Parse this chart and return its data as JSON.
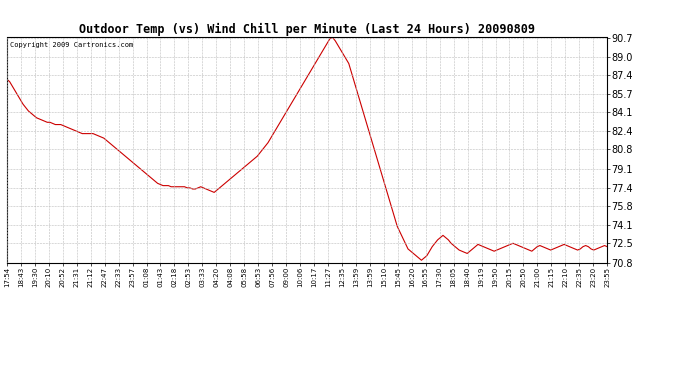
{
  "title": "Outdoor Temp (vs) Wind Chill per Minute (Last 24 Hours) 20090809",
  "copyright_text": "Copyright 2009 Cartronics.com",
  "line_color": "#cc0000",
  "background_color": "#ffffff",
  "grid_color": "#bbbbbb",
  "ylim": [
    70.8,
    90.7
  ],
  "yticks": [
    70.8,
    72.5,
    74.1,
    75.8,
    77.4,
    79.1,
    80.8,
    82.4,
    84.1,
    85.7,
    87.4,
    89.0,
    90.7
  ],
  "xtick_labels": [
    "17:54",
    "18:43",
    "19:30",
    "20:10",
    "20:52",
    "21:31",
    "21:12",
    "22:47",
    "22:33",
    "23:57",
    "01:08",
    "01:43",
    "02:18",
    "02:53",
    "03:33",
    "04:20",
    "04:08",
    "05:58",
    "06:53",
    "07:56",
    "09:00",
    "10:06",
    "10:17",
    "11:27",
    "12:35",
    "13:59",
    "13:59",
    "15:10",
    "15:45",
    "16:20",
    "16:55",
    "17:30",
    "18:05",
    "18:40",
    "19:19",
    "19:50",
    "20:15",
    "20:50",
    "21:00",
    "21:15",
    "22:10",
    "22:35",
    "23:20",
    "23:55"
  ],
  "data_y": [
    87.0,
    86.8,
    86.4,
    86.0,
    85.6,
    85.2,
    84.8,
    84.5,
    84.2,
    84.0,
    83.8,
    83.6,
    83.5,
    83.4,
    83.3,
    83.2,
    83.2,
    83.1,
    83.0,
    83.0,
    83.0,
    82.9,
    82.8,
    82.7,
    82.6,
    82.5,
    82.4,
    82.3,
    82.2,
    82.2,
    82.2,
    82.2,
    82.2,
    82.1,
    82.0,
    81.9,
    81.8,
    81.6,
    81.4,
    81.2,
    81.0,
    80.8,
    80.6,
    80.4,
    80.2,
    80.0,
    79.8,
    79.6,
    79.4,
    79.2,
    79.0,
    78.8,
    78.6,
    78.4,
    78.2,
    78.0,
    77.8,
    77.7,
    77.6,
    77.6,
    77.6,
    77.5,
    77.5,
    77.5,
    77.5,
    77.5,
    77.5,
    77.4,
    77.4,
    77.3,
    77.3,
    77.4,
    77.5,
    77.4,
    77.3,
    77.2,
    77.1,
    77.0,
    77.2,
    77.4,
    77.6,
    77.8,
    78.0,
    78.2,
    78.4,
    78.6,
    78.8,
    79.0,
    79.2,
    79.4,
    79.6,
    79.8,
    80.0,
    80.2,
    80.5,
    80.8,
    81.1,
    81.4,
    81.8,
    82.2,
    82.6,
    83.0,
    83.4,
    83.8,
    84.2,
    84.6,
    85.0,
    85.4,
    85.8,
    86.2,
    86.6,
    87.0,
    87.4,
    87.8,
    88.2,
    88.6,
    89.0,
    89.4,
    89.8,
    90.2,
    90.6,
    90.7,
    90.4,
    90.0,
    89.6,
    89.2,
    88.8,
    88.4,
    87.6,
    86.8,
    86.0,
    85.2,
    84.4,
    83.6,
    82.8,
    82.0,
    81.2,
    80.4,
    79.6,
    78.8,
    78.0,
    77.2,
    76.4,
    75.6,
    74.8,
    74.0,
    73.5,
    73.0,
    72.5,
    72.0,
    71.8,
    71.6,
    71.4,
    71.2,
    71.0,
    71.2,
    71.4,
    71.8,
    72.2,
    72.5,
    72.8,
    73.0,
    73.2,
    73.0,
    72.8,
    72.5,
    72.3,
    72.1,
    71.9,
    71.8,
    71.7,
    71.6,
    71.8,
    72.0,
    72.2,
    72.4,
    72.3,
    72.2,
    72.1,
    72.0,
    71.9,
    71.8,
    71.9,
    72.0,
    72.1,
    72.2,
    72.3,
    72.4,
    72.5,
    72.4,
    72.3,
    72.2,
    72.1,
    72.0,
    71.9,
    71.8,
    72.0,
    72.2,
    72.3,
    72.2,
    72.1,
    72.0,
    71.9,
    72.0,
    72.1,
    72.2,
    72.3,
    72.4,
    72.3,
    72.2,
    72.1,
    72.0,
    71.9,
    72.0,
    72.2,
    72.3,
    72.2,
    72.0,
    71.9,
    72.0,
    72.1,
    72.2,
    72.3,
    72.2
  ],
  "figwidth": 6.9,
  "figheight": 3.75,
  "dpi": 100
}
